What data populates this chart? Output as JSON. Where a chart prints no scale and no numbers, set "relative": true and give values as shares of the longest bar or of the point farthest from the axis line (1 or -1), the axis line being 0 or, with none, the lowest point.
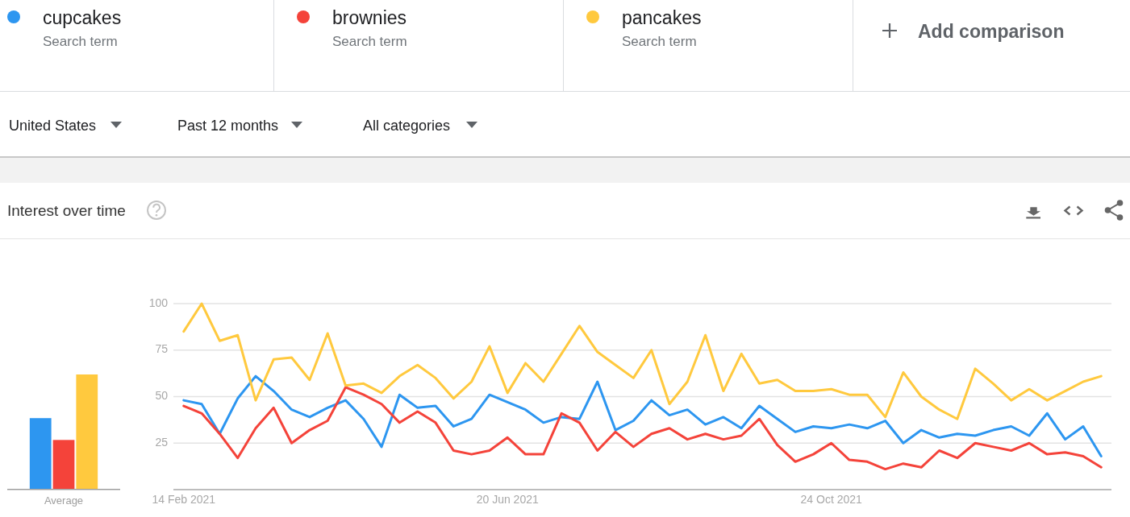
{
  "chart_data": [
    {
      "type": "other",
      "annotations": [
        "Search term",
        "Search term",
        "Search term",
        "Add comparison",
        "United States",
        "Past 12 months",
        "All categories"
      ]
    },
    {
      "type": "bar",
      "relative": true,
      "categories": [
        "Average"
      ],
      "series": [
        {
          "color": "#2d96f0",
          "values": [
            0.62
          ]
        },
        {
          "color": "#f4433a",
          "values": [
            0.43
          ]
        },
        {
          "color": "#ffc93e",
          "values": [
            1
          ]
        }
      ]
    },
    {
      "type": "line",
      "title": "Interest over time",
      "legend": "top",
      "grid": "y",
      "x": [
        "2021-02-14",
        "2021-02-21",
        "2021-02-28",
        "2021-03-07",
        "2021-03-14",
        "2021-03-21",
        "2021-03-28",
        "2021-04-04",
        "2021-04-11",
        "2021-04-18",
        "2021-04-25",
        "2021-05-02",
        "2021-05-09",
        "2021-05-16",
        "2021-05-23",
        "2021-05-30",
        "2021-06-06",
        "2021-06-13",
        "2021-06-20",
        "2021-06-27",
        "2021-07-04",
        "2021-07-11",
        "2021-07-18",
        "2021-07-25",
        "2021-08-01",
        "2021-08-08",
        "2021-08-15",
        "2021-08-22",
        "2021-08-29",
        "2021-09-05",
        "2021-09-12",
        "2021-09-19",
        "2021-09-26",
        "2021-10-03",
        "2021-10-10",
        "2021-10-17",
        "2021-10-24",
        "2021-10-31",
        "2021-11-07",
        "2021-11-14",
        "2021-11-21",
        "2021-11-28",
        "2021-12-05",
        "2021-12-12",
        "2021-12-19",
        "2021-12-26",
        "2022-01-02",
        "2022-01-09",
        "2022-01-16",
        "2022-01-23",
        "2022-01-30",
        "2022-02-06"
      ],
      "xlim": [
        "2021-02-10",
        "2022-02-10"
      ],
      "xticks": [
        {
          "value": "2021-02-14",
          "label": "14 Feb 2021"
        },
        {
          "value": "2021-06-20",
          "label": "20 Jun 2021"
        },
        {
          "value": "2021-10-24",
          "label": "24 Oct 2021"
        }
      ],
      "ylim": [
        0,
        100
      ],
      "yticks": [
        25,
        50,
        75,
        100
      ],
      "series": [
        {
          "name": "cupcakes",
          "color": "#2d96f0",
          "values": [
            48,
            46,
            30,
            49,
            61,
            53,
            43,
            39,
            44,
            48,
            38,
            23,
            51,
            44,
            45,
            34,
            38,
            51,
            47,
            43,
            36,
            39,
            38,
            58,
            32,
            37,
            48,
            40,
            43,
            35,
            39,
            33,
            45,
            38,
            31,
            34,
            33,
            35,
            33,
            37,
            25,
            32,
            28,
            30,
            29,
            32,
            34,
            29,
            41,
            27,
            34,
            18
          ]
        },
        {
          "name": "brownies",
          "color": "#f4433a",
          "values": [
            45,
            41,
            30,
            17,
            33,
            44,
            25,
            32,
            37,
            55,
            51,
            46,
            36,
            42,
            36,
            21,
            19,
            21,
            28,
            19,
            19,
            41,
            36,
            21,
            31,
            23,
            30,
            33,
            27,
            30,
            27,
            29,
            38,
            24,
            15,
            19,
            25,
            16,
            15,
            11,
            14,
            12,
            21,
            17,
            25,
            23,
            21,
            25,
            19,
            20,
            18,
            12
          ]
        },
        {
          "name": "pancakes",
          "color": "#ffc93e",
          "values": [
            85,
            100,
            80,
            83,
            48,
            70,
            71,
            59,
            84,
            56,
            57,
            52,
            61,
            67,
            60,
            49,
            58,
            77,
            52,
            68,
            58,
            73,
            88,
            74,
            67,
            60,
            75,
            46,
            58,
            83,
            53,
            73,
            57,
            59,
            53,
            53,
            54,
            51,
            51,
            39,
            63,
            50,
            43,
            38,
            65,
            57,
            48,
            54,
            48,
            53,
            58,
            61
          ]
        }
      ]
    }
  ]
}
